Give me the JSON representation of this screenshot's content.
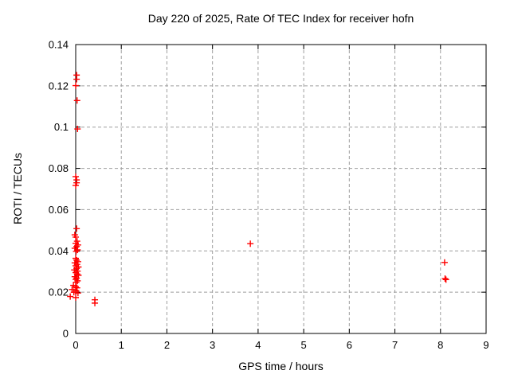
{
  "title": "Day 220 of 2025, Rate Of TEC Index for receiver hofn",
  "colors": {
    "background": "#ffffff",
    "border": "#000000",
    "grid": "#9e9e9e",
    "text": "#000000",
    "marker": "#ff0000"
  },
  "chart_data": {
    "type": "scatter",
    "title": "Day 220 of 2025, Rate Of TEC Index for receiver hofn",
    "xlabel": "GPS time / hours",
    "ylabel": "ROTI / TECUs",
    "xlim": [
      0,
      9
    ],
    "ylim": [
      0,
      0.14
    ],
    "xticks": [
      0,
      1,
      2,
      3,
      4,
      5,
      6,
      7,
      8,
      9
    ],
    "xtick_labels": [
      "0",
      "1",
      "2",
      "3",
      "4",
      "5",
      "6",
      "7",
      "8",
      "9"
    ],
    "yticks": [
      0,
      0.02,
      0.04,
      0.06,
      0.08,
      0.1,
      0.12,
      0.14
    ],
    "ytick_labels": [
      "0",
      "0.02",
      "0.04",
      "0.06",
      "0.08",
      "0.1",
      "0.12",
      "0.14"
    ],
    "grid": true,
    "grid_style": "dashed",
    "legend": "none",
    "marker": "plus",
    "series": [
      {
        "name": "ROTI",
        "color": "#ff0000",
        "points": [
          [
            0.02,
            0.1252
          ],
          [
            0.02,
            0.1232
          ],
          [
            0.0,
            0.1201
          ],
          [
            0.03,
            0.1129
          ],
          [
            0.04,
            0.0991
          ],
          [
            0.0,
            0.076
          ],
          [
            0.02,
            0.0744
          ],
          [
            0.02,
            0.073
          ],
          [
            0.0,
            0.0717
          ],
          [
            0.02,
            0.0508
          ],
          [
            -0.02,
            0.0478
          ],
          [
            0.0,
            0.0467
          ],
          [
            0.03,
            0.0447
          ],
          [
            0.0,
            0.0437
          ],
          [
            0.05,
            0.0429
          ],
          [
            0.02,
            0.0421
          ],
          [
            -0.02,
            0.0413
          ],
          [
            0.04,
            0.0405
          ],
          [
            0.01,
            0.0398
          ],
          [
            0.0,
            0.0364
          ],
          [
            0.02,
            0.0355
          ],
          [
            0.05,
            0.0348
          ],
          [
            -0.02,
            0.0342
          ],
          [
            0.03,
            0.0335
          ],
          [
            0.0,
            0.0328
          ],
          [
            0.06,
            0.0322
          ],
          [
            0.02,
            0.0315
          ],
          [
            -0.03,
            0.0308
          ],
          [
            0.04,
            0.0302
          ],
          [
            0.0,
            0.0295
          ],
          [
            0.03,
            0.0288
          ],
          [
            0.06,
            0.0282
          ],
          [
            -0.02,
            0.0275
          ],
          [
            0.02,
            0.0268
          ],
          [
            0.0,
            0.0262
          ],
          [
            0.04,
            0.0255
          ],
          [
            0.01,
            0.0248
          ],
          [
            -0.05,
            0.0233
          ],
          [
            0.0,
            0.0227
          ],
          [
            0.03,
            0.0221
          ],
          [
            -0.08,
            0.0213
          ],
          [
            0.01,
            0.0206
          ],
          [
            -0.04,
            0.02
          ],
          [
            0.05,
            0.0196
          ],
          [
            -0.12,
            0.0179
          ],
          [
            0.0,
            0.0174
          ],
          [
            0.42,
            0.0163
          ],
          [
            0.42,
            0.0147
          ],
          [
            3.83,
            0.0435
          ],
          [
            8.09,
            0.0344
          ],
          [
            8.1,
            0.0266
          ],
          [
            8.12,
            0.0261
          ]
        ]
      }
    ]
  }
}
